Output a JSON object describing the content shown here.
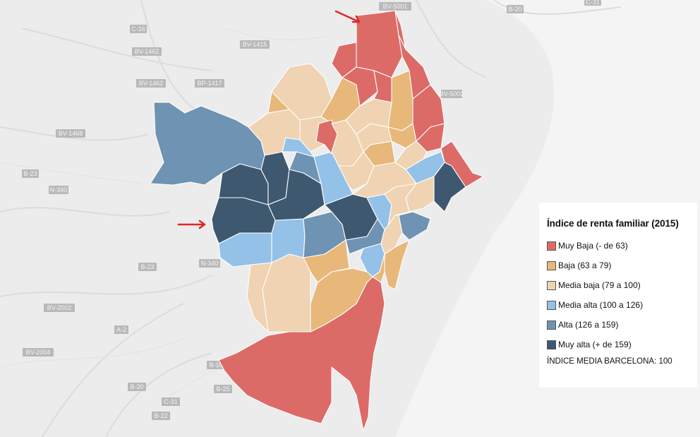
{
  "legend": {
    "title": "Índice de renta familiar (2015)",
    "items": [
      {
        "label": "Muy Baja (- de 63)",
        "color": "#dc6b68"
      },
      {
        "label": "Baja (63 a 79)",
        "color": "#e8b77a"
      },
      {
        "label": "Media baja (79 a 100)",
        "color": "#efd3b2"
      },
      {
        "label": "Media alta (100 a 126)",
        "color": "#94c1e8"
      },
      {
        "label": "Alta (126 a 159)",
        "color": "#6e93b3"
      },
      {
        "label": "Muy alta (+ de 159)",
        "color": "#3e5870"
      }
    ],
    "note": "ÍNDICE MEDIA BARCELONA: 100"
  },
  "road_labels": [
    "B-20",
    "C-16",
    "BV-1462",
    "BV-1415",
    "BV-5001",
    "BV-1462",
    "BP-1417",
    "C-31",
    "BV-1468",
    "B-23",
    "N-340",
    "N-340",
    "B-23",
    "BV-2002",
    "A-2",
    "BV-2004",
    "B-10",
    "B-20",
    "B-22",
    "C-31",
    "B-25",
    "BV-5001"
  ],
  "annotations": [
    {
      "icon": "red-arrow-icon"
    },
    {
      "icon": "red-arrow-icon"
    }
  ],
  "colors": {
    "arrow": "#e0262b",
    "land": "#ececec",
    "sea": "#f4f4f4"
  }
}
